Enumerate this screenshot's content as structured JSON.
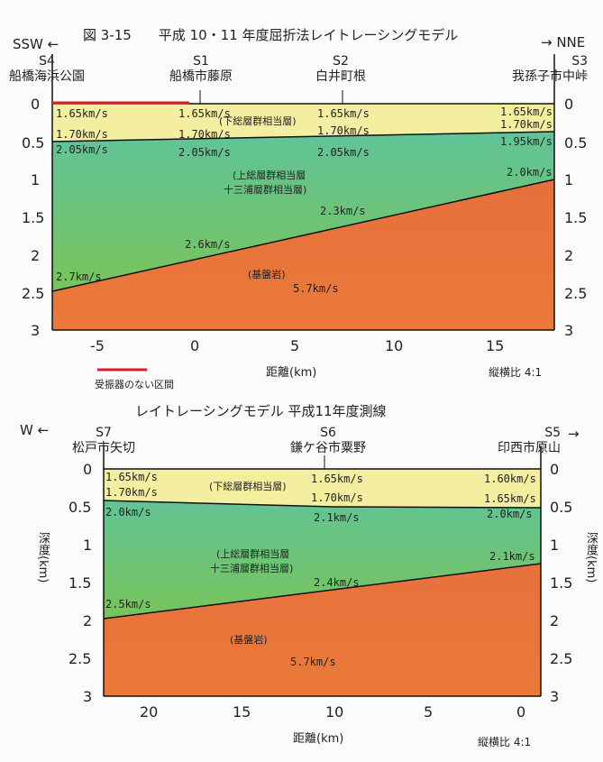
{
  "top": {
    "title": "図 3-15　　平成 10・11 年度屈折法レイトレーシングモデル",
    "dir_left": "SSW ←",
    "dir_right": "→ NNE",
    "stations": [
      {
        "id": "S4",
        "name": "船橋海浜公園"
      },
      {
        "id": "S1",
        "name": "船橋市藤原"
      },
      {
        "id": "S2",
        "name": "白井町根"
      },
      {
        "id": "S3",
        "name": "我孫子市中峠"
      }
    ],
    "velocities": [
      "1.65km/s",
      "1.65km/s",
      "1.65km/s",
      "1.65km/s",
      "1.70km/s",
      "1.70km/s",
      "1.70km/s",
      "1.70km/s",
      "1.95km/s",
      "2.05km/s",
      "2.05km/s",
      "2.05km/s",
      "2.0km/s",
      "2.3km/s",
      "2.6km/s",
      "2.7km/s",
      "5.7km/s"
    ],
    "layers": [
      "(下総層群相当層)",
      "(上総層群相当層",
      "十三浦層群相当層)",
      "(基盤岩)"
    ],
    "x_ticks": [
      "-5",
      "0",
      "5",
      "10",
      "15"
    ],
    "y_ticks": [
      "0",
      "0.5",
      "1",
      "1.5",
      "2",
      "2.5",
      "3"
    ],
    "xlabel": "距離(km)",
    "ratio": "縦横比 4:1",
    "legend": "受振器のない区間",
    "colors": {
      "receiverless": "#d8202a"
    }
  },
  "bottom": {
    "title": "レイトレーシングモデル 平成11年度測線",
    "dir_left": "W ←",
    "dir_right": "→",
    "stations": [
      {
        "id": "S7",
        "name": "松戸市矢切"
      },
      {
        "id": "S6",
        "name": "鎌ケ谷市粟野"
      },
      {
        "id": "S5",
        "name": "印西市原山"
      }
    ],
    "velocities": [
      "1.65km/s",
      "1.70km/s",
      "2.0km/s",
      "2.5km/s",
      "1.65km/s",
      "1.70km/s",
      "2.1km/s",
      "2.4km/s",
      "1.60km/s",
      "1.65km/s",
      "2.0km/s",
      "2.1km/s",
      "5.7km/s"
    ],
    "layers": [
      "(下総層群相当層)",
      "(上総層群相当層",
      "十三浦層群相当層)",
      "(基盤岩)"
    ],
    "x_ticks": [
      "20",
      "15",
      "10",
      "5",
      "0"
    ],
    "y_ticks": [
      "0",
      "0.5",
      "1",
      "1.5",
      "2",
      "2.5",
      "3"
    ],
    "ylabel": "深度(km)",
    "xlabel": "距離(km)",
    "ratio": "縦横比 4:1"
  },
  "colors": {
    "yellow": "#f3eea0",
    "green_top": "#5cc4a4",
    "green_bottom": "#74c462",
    "orange_top": "#e8663a",
    "orange_bottom": "#e8703a"
  }
}
